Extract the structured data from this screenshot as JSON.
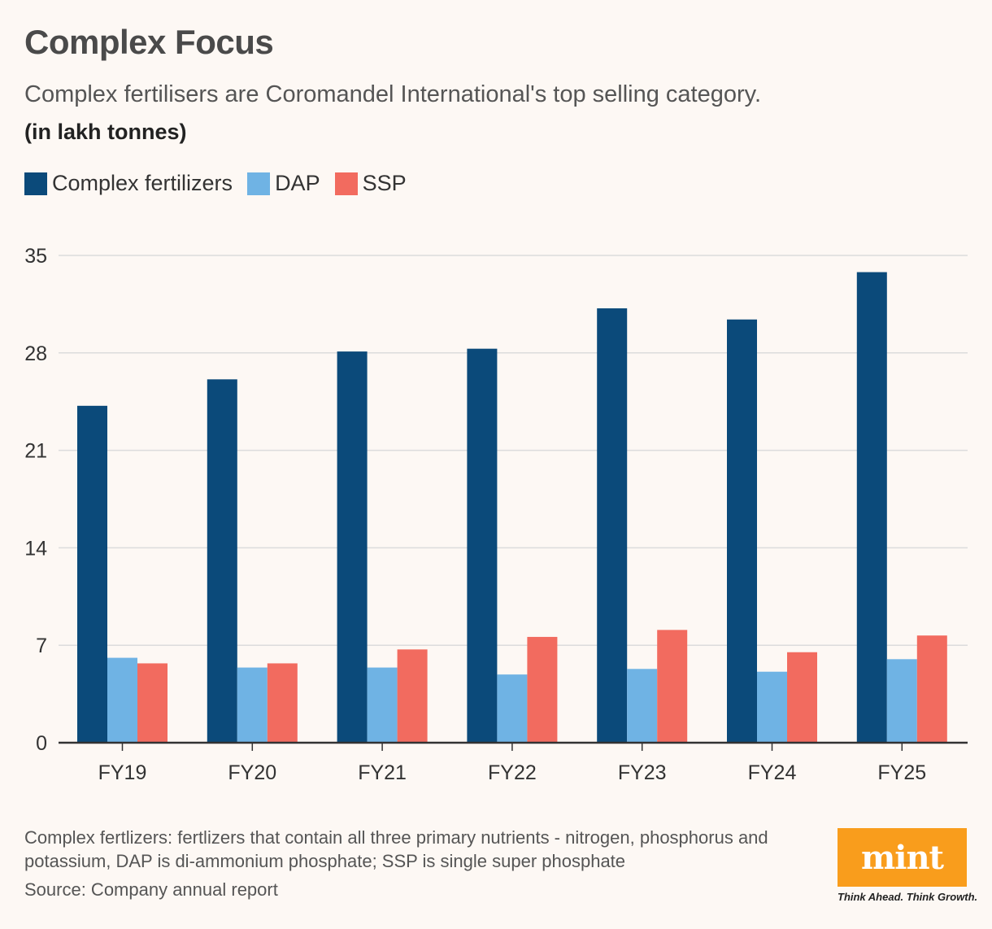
{
  "header": {
    "title": "Complex Focus",
    "subtitle": "Complex fertilisers are Coromandel International's top selling category.",
    "unit": "(in lakh tonnes)"
  },
  "legend": [
    {
      "label": "Complex fertilizers",
      "color": "#0b4a7a"
    },
    {
      "label": "DAP",
      "color": "#6fb3e4"
    },
    {
      "label": "SSP",
      "color": "#f26b5f"
    }
  ],
  "chart_data": {
    "type": "bar",
    "title": "Complex Focus",
    "ylabel": "(in lakh tonnes)",
    "xlabel": "",
    "categories": [
      "FY19",
      "FY20",
      "FY21",
      "FY22",
      "FY23",
      "FY24",
      "FY25"
    ],
    "series": [
      {
        "name": "Complex fertilizers",
        "color": "#0b4a7a",
        "values": [
          24.2,
          26.1,
          28.1,
          28.3,
          31.2,
          30.4,
          33.8
        ]
      },
      {
        "name": "DAP",
        "color": "#6fb3e4",
        "values": [
          6.1,
          5.4,
          5.4,
          4.9,
          5.3,
          5.1,
          6.0
        ]
      },
      {
        "name": "SSP",
        "color": "#f26b5f",
        "values": [
          5.7,
          5.7,
          6.7,
          7.6,
          8.1,
          6.5,
          7.7
        ]
      }
    ],
    "yticks": [
      "0",
      "7",
      "14",
      "21",
      "28",
      "35"
    ],
    "ylim": [
      0,
      35
    ],
    "grid": true,
    "legend_position": "top-left"
  },
  "footer": {
    "note": "Complex fertlizers: fertlizers that contain all three primary nutrients - nitrogen, phosphorus and potassium, DAP is di-ammonium phosphate; SSP is single super phosphate",
    "source": "Source: Company annual report",
    "brand": "mint",
    "tagline": "Think Ahead. Think Growth."
  }
}
